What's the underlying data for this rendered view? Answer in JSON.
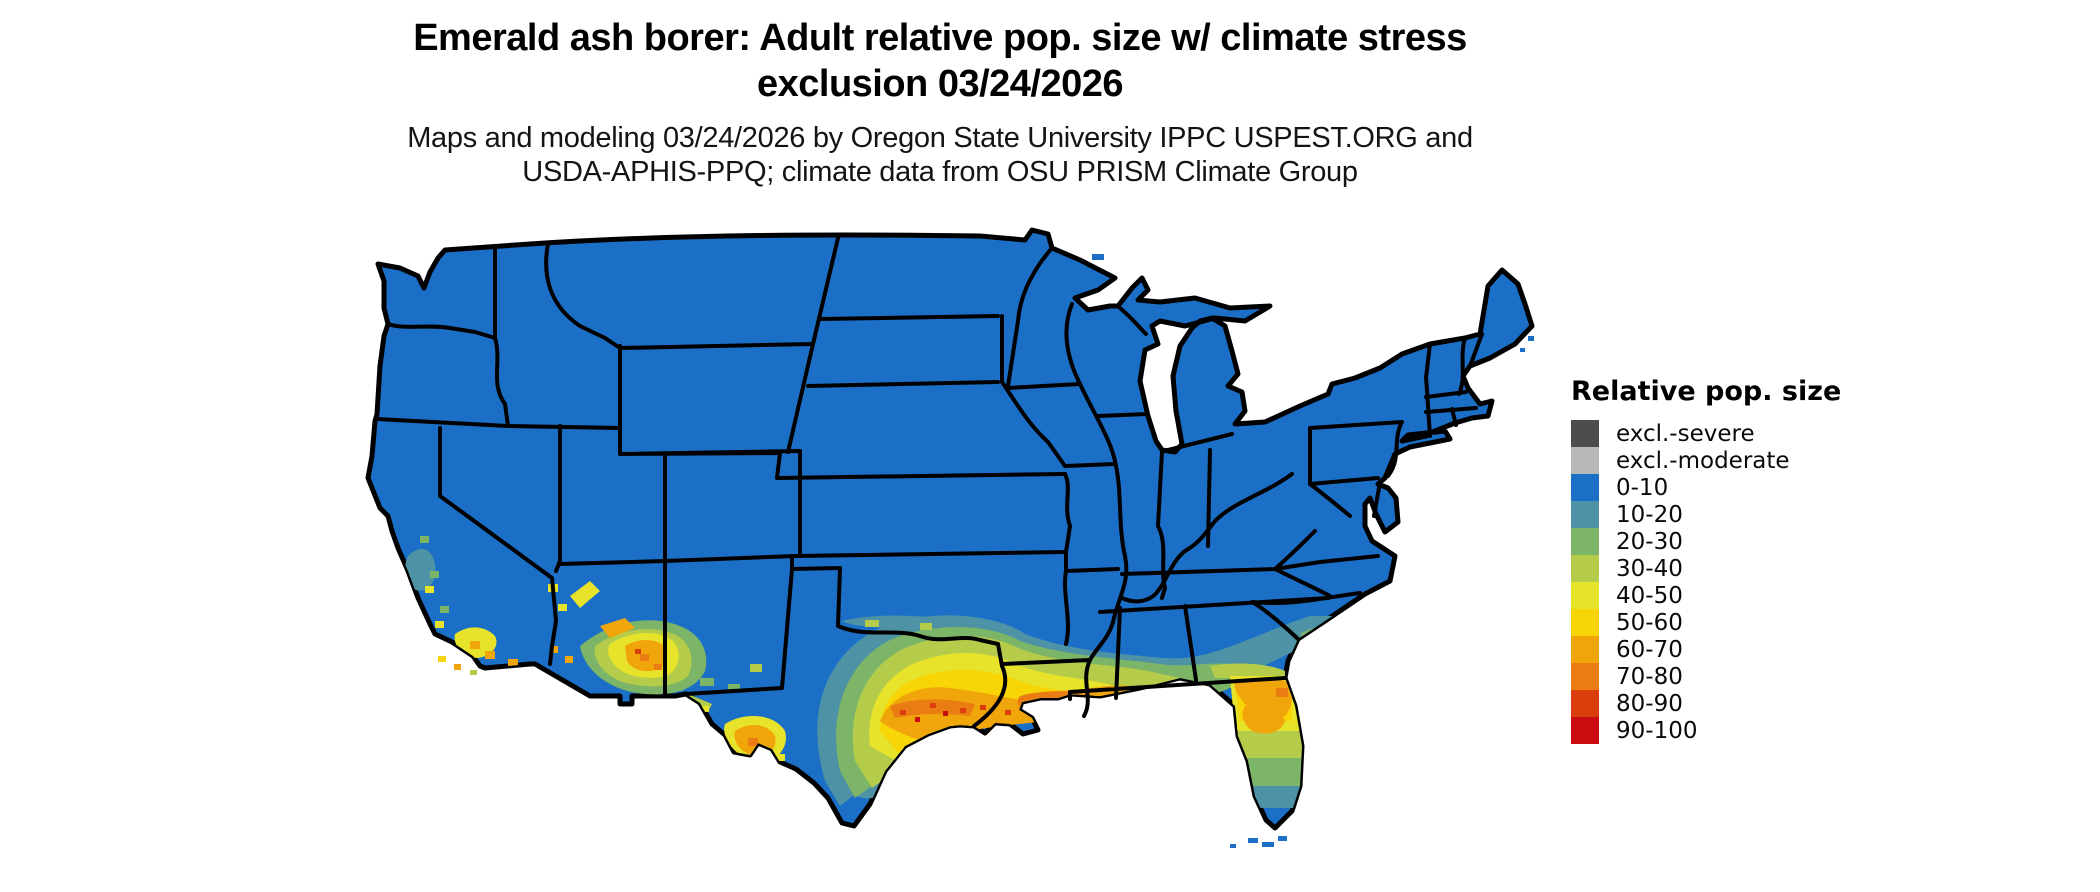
{
  "header": {
    "title_line1": "Emerald ash borer: Adult relative pop. size w/ climate stress",
    "title_line2": "exclusion 03/24/2026",
    "subtitle_line1": "Maps and modeling 03/24/2026 by Oregon State University IPPC USPEST.ORG and",
    "subtitle_line2": "USDA-APHIS-PPQ; climate data from OSU PRISM Climate Group"
  },
  "legend": {
    "title": "Relative pop. size",
    "items": [
      {
        "label": "excl.-severe",
        "color": "#4d4d4d"
      },
      {
        "label": "excl.-moderate",
        "color": "#b8b8b8"
      },
      {
        "label": "0-10",
        "color": "#1b6fc7"
      },
      {
        "label": "10-20",
        "color": "#4e93a5"
      },
      {
        "label": "20-30",
        "color": "#7cb468"
      },
      {
        "label": "30-40",
        "color": "#b4cc4a"
      },
      {
        "label": "40-50",
        "color": "#e7e32b"
      },
      {
        "label": "50-60",
        "color": "#f7d507"
      },
      {
        "label": "60-70",
        "color": "#f0a50b"
      },
      {
        "label": "70-80",
        "color": "#e97c12"
      },
      {
        "label": "80-90",
        "color": "#da3e0d"
      },
      {
        "label": "90-100",
        "color": "#c80c0f"
      }
    ]
  },
  "map": {
    "border_color": "#000000",
    "water_color": "#ffffff"
  }
}
